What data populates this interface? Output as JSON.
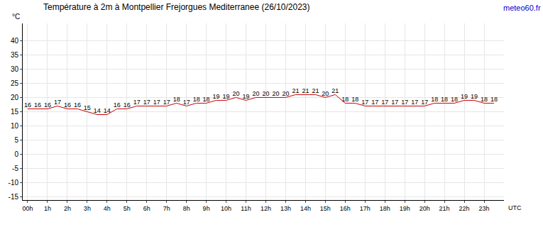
{
  "chart_data": {
    "type": "line",
    "title": "Température à 2m à Montpellier Frejorgues Mediterranee (26/10/2023)",
    "source": "meteo60.fr",
    "y_label": "°C",
    "x_label": "UTC",
    "x": [
      0,
      0.5,
      1,
      1.5,
      2,
      2.5,
      3,
      3.5,
      4,
      4.5,
      5,
      5.5,
      6,
      6.5,
      7,
      7.5,
      8,
      8.5,
      9,
      9.5,
      10,
      10.5,
      11,
      11.5,
      12,
      12.5,
      13,
      13.5,
      14,
      14.5,
      15,
      15.5,
      16,
      16.5,
      17,
      17.5,
      18,
      18.5,
      19,
      19.5,
      20,
      20.5,
      21,
      21.5,
      22,
      22.5,
      23,
      23.5
    ],
    "series": [
      {
        "name": "Température",
        "color": "#cc0000",
        "values": [
          16,
          16,
          16,
          17,
          16,
          16,
          15,
          14,
          14,
          16,
          16,
          17,
          17,
          17,
          17,
          18,
          17,
          18,
          18,
          19,
          19,
          20,
          19,
          20,
          20,
          20,
          20,
          21,
          21,
          21,
          20,
          21,
          18,
          18,
          17,
          17,
          17,
          17,
          17,
          17,
          17,
          18,
          18,
          18,
          19,
          19,
          18,
          18
        ]
      }
    ],
    "data_labels": true,
    "grid": true,
    "xlim": [
      -0.25,
      24
    ],
    "xticks": [
      {
        "value": 0,
        "label": "00h"
      },
      {
        "value": 1,
        "label": "1h"
      },
      {
        "value": 2,
        "label": "2h"
      },
      {
        "value": 3,
        "label": "3h"
      },
      {
        "value": 4,
        "label": "4h"
      },
      {
        "value": 5,
        "label": "5h"
      },
      {
        "value": 6,
        "label": "6h"
      },
      {
        "value": 7,
        "label": "7h"
      },
      {
        "value": 8,
        "label": "8h"
      },
      {
        "value": 9,
        "label": "9h"
      },
      {
        "value": 10,
        "label": "10h"
      },
      {
        "value": 11,
        "label": "11h"
      },
      {
        "value": 12,
        "label": "12h"
      },
      {
        "value": 13,
        "label": "13h"
      },
      {
        "value": 14,
        "label": "14h"
      },
      {
        "value": 15,
        "label": "15h"
      },
      {
        "value": 16,
        "label": "16h"
      },
      {
        "value": 17,
        "label": "17h"
      },
      {
        "value": 18,
        "label": "18h"
      },
      {
        "value": 19,
        "label": "19h"
      },
      {
        "value": 20,
        "label": "20h"
      },
      {
        "value": 21,
        "label": "21h"
      },
      {
        "value": 22,
        "label": "22h"
      },
      {
        "value": 23,
        "label": "23h"
      }
    ],
    "ylim": [
      -16,
      46
    ],
    "yticks": [
      -15,
      -10,
      -5,
      0,
      5,
      10,
      15,
      20,
      25,
      30,
      35,
      40
    ]
  }
}
